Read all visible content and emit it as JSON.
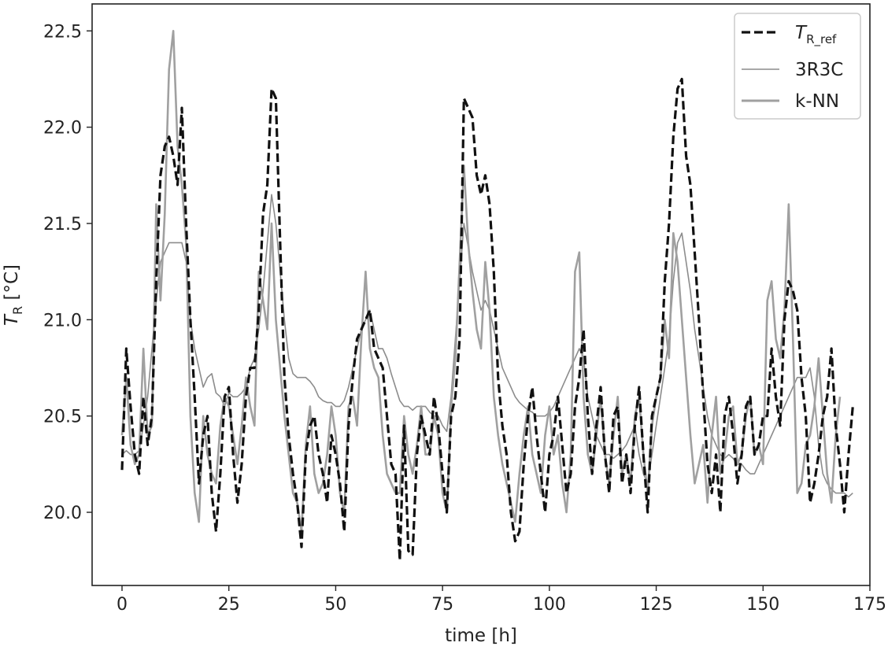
{
  "chart_data": {
    "type": "line",
    "xlabel": "time [h]",
    "ylabel": {
      "main": "T",
      "sub": "R",
      "rest": " [°C]"
    },
    "xlim": [
      -7,
      175
    ],
    "ylim": [
      19.62,
      22.64
    ],
    "xticks": [
      0,
      25,
      50,
      75,
      100,
      125,
      150,
      175
    ],
    "yticks": [
      20.0,
      20.5,
      21.0,
      21.5,
      22.0,
      22.5
    ],
    "xtick_labels": [
      "0",
      "25",
      "50",
      "75",
      "100",
      "125",
      "150",
      "175"
    ],
    "ytick_labels": [
      "20.0",
      "20.5",
      "21.0",
      "21.5",
      "22.0",
      "22.5"
    ],
    "grid": false,
    "legend_position": "top-right",
    "series": [
      {
        "name": "T_R_ref",
        "legend": {
          "main": "T",
          "sub": "R_ref"
        },
        "color": "#111111",
        "style": "dashed",
        "values": [
          20.22,
          20.85,
          20.55,
          20.3,
          20.2,
          20.6,
          20.35,
          20.5,
          21.2,
          21.75,
          21.9,
          21.95,
          21.85,
          21.7,
          22.1,
          21.5,
          21.0,
          20.6,
          20.15,
          20.4,
          20.5,
          20.1,
          19.9,
          20.2,
          20.6,
          20.65,
          20.3,
          20.05,
          20.25,
          20.6,
          20.75,
          20.75,
          21.05,
          21.55,
          21.7,
          22.2,
          22.15,
          21.4,
          20.7,
          20.4,
          20.2,
          20.05,
          19.82,
          20.3,
          20.45,
          20.5,
          20.3,
          20.2,
          20.05,
          20.4,
          20.3,
          20.15,
          19.9,
          20.45,
          20.7,
          20.9,
          20.95,
          21.0,
          21.05,
          20.85,
          20.8,
          20.75,
          20.5,
          20.25,
          20.2,
          19.75,
          20.45,
          19.8,
          19.78,
          20.3,
          20.5,
          20.4,
          20.3,
          20.6,
          20.45,
          20.2,
          20.0,
          20.5,
          20.6,
          20.9,
          22.15,
          22.1,
          22.05,
          21.75,
          21.65,
          21.75,
          21.6,
          21.25,
          20.7,
          20.45,
          20.3,
          20.0,
          19.85,
          19.9,
          20.25,
          20.5,
          20.65,
          20.4,
          20.2,
          20.0,
          20.3,
          20.4,
          20.6,
          20.35,
          20.1,
          20.2,
          20.55,
          20.7,
          20.95,
          20.5,
          20.2,
          20.45,
          20.65,
          20.3,
          20.1,
          20.5,
          20.55,
          20.15,
          20.3,
          20.1,
          20.45,
          20.65,
          20.3,
          20.0,
          20.5,
          20.6,
          20.7,
          21.2,
          21.5,
          21.95,
          22.2,
          22.25,
          21.85,
          21.7,
          21.35,
          21.0,
          20.6,
          20.25,
          20.1,
          20.3,
          20.0,
          20.5,
          20.6,
          20.4,
          20.15,
          20.3,
          20.55,
          20.6,
          20.3,
          20.35,
          20.5,
          20.5,
          20.85,
          20.6,
          20.45,
          21.0,
          21.2,
          21.15,
          21.05,
          20.7,
          20.5,
          20.05,
          20.15,
          20.3,
          20.5,
          20.6,
          20.85,
          20.45,
          20.25,
          20.0,
          20.3,
          20.55
        ],
        "x_start": 0,
        "x_step": 1
      },
      {
        "name": "3R3C",
        "color": "#8c8c8c",
        "style": "thin",
        "values": [
          20.3,
          20.32,
          20.3,
          20.3,
          20.32,
          20.45,
          20.6,
          20.85,
          21.1,
          21.3,
          21.35,
          21.4,
          21.4,
          21.4,
          21.4,
          21.3,
          21.0,
          20.85,
          20.75,
          20.65,
          20.7,
          20.72,
          20.62,
          20.6,
          20.55,
          20.62,
          20.6,
          20.6,
          20.62,
          20.65,
          20.75,
          20.8,
          20.95,
          21.15,
          21.4,
          21.65,
          21.5,
          21.25,
          21.0,
          20.8,
          20.72,
          20.7,
          20.7,
          20.7,
          20.68,
          20.65,
          20.6,
          20.58,
          20.57,
          20.57,
          20.55,
          20.55,
          20.58,
          20.65,
          20.75,
          20.85,
          20.95,
          21.0,
          21.05,
          20.95,
          20.85,
          20.85,
          20.8,
          20.72,
          20.65,
          20.58,
          20.55,
          20.55,
          20.53,
          20.55,
          20.55,
          20.55,
          20.52,
          20.5,
          20.5,
          20.45,
          20.42,
          20.6,
          20.9,
          21.2,
          21.5,
          21.38,
          21.25,
          21.15,
          21.05,
          21.1,
          21.05,
          20.95,
          20.85,
          20.75,
          20.7,
          20.65,
          20.6,
          20.57,
          20.55,
          20.53,
          20.52,
          20.5,
          20.5,
          20.5,
          20.52,
          20.55,
          20.6,
          20.65,
          20.7,
          20.75,
          20.8,
          20.85,
          20.8,
          20.6,
          20.5,
          20.4,
          20.35,
          20.3,
          20.3,
          20.28,
          20.3,
          20.32,
          20.35,
          20.4,
          20.45,
          20.3,
          20.2,
          20.15,
          20.3,
          20.45,
          20.6,
          20.75,
          20.9,
          21.2,
          21.4,
          21.45,
          21.3,
          21.15,
          20.95,
          20.8,
          20.65,
          20.5,
          20.4,
          20.35,
          20.3,
          20.28,
          20.3,
          20.28,
          20.25,
          20.25,
          20.22,
          20.2,
          20.2,
          20.25,
          20.3,
          20.35,
          20.4,
          20.45,
          20.5,
          20.55,
          20.6,
          20.65,
          20.7,
          20.7,
          20.7,
          20.75,
          20.6,
          20.35,
          20.2,
          20.15,
          20.12,
          20.1,
          20.1,
          20.1,
          20.08,
          20.1
        ]
      },
      {
        "name": "k-NN",
        "color": "#a0a0a0",
        "style": "solid",
        "values": [
          20.4,
          20.7,
          20.35,
          20.25,
          20.3,
          20.85,
          20.4,
          20.45,
          21.6,
          21.1,
          21.55,
          22.3,
          22.5,
          21.9,
          21.7,
          21.4,
          20.5,
          20.1,
          19.95,
          20.5,
          20.3,
          20.2,
          20.15,
          20.45,
          20.6,
          20.55,
          20.4,
          20.25,
          20.45,
          20.7,
          20.55,
          20.45,
          21.25,
          21.1,
          20.95,
          21.5,
          21.0,
          20.75,
          20.5,
          20.3,
          20.1,
          20.05,
          19.9,
          20.35,
          20.55,
          20.2,
          20.1,
          20.15,
          20.3,
          20.55,
          20.4,
          20.1,
          20.0,
          20.55,
          20.6,
          20.45,
          20.9,
          21.25,
          20.85,
          20.75,
          20.7,
          20.4,
          20.2,
          20.15,
          20.1,
          20.1,
          20.5,
          20.3,
          20.2,
          20.35,
          20.55,
          20.3,
          20.3,
          20.5,
          20.4,
          20.1,
          20.0,
          20.55,
          20.8,
          21.3,
          21.8,
          21.4,
          21.15,
          20.95,
          20.85,
          21.3,
          21.05,
          20.6,
          20.4,
          20.25,
          20.15,
          20.05,
          19.95,
          20.2,
          20.4,
          20.55,
          20.3,
          20.2,
          20.1,
          20.4,
          20.55,
          20.3,
          20.4,
          20.15,
          20.0,
          20.3,
          21.25,
          21.35,
          20.6,
          20.3,
          20.2,
          20.4,
          20.6,
          20.3,
          20.15,
          20.4,
          20.6,
          20.2,
          20.3,
          20.15,
          20.5,
          20.6,
          20.3,
          20.1,
          20.45,
          20.6,
          20.7,
          21.0,
          20.8,
          21.45,
          21.3,
          21.0,
          20.7,
          20.4,
          20.15,
          20.25,
          20.35,
          20.05,
          20.4,
          20.6,
          20.2,
          20.3,
          20.5,
          20.55,
          20.25,
          20.3,
          20.5,
          20.6,
          20.3,
          20.35,
          20.25,
          21.1,
          21.2,
          20.9,
          20.8,
          21.05,
          21.6,
          20.9,
          20.1,
          20.15,
          20.35,
          20.4,
          20.55,
          20.8,
          20.5,
          20.2,
          20.05,
          20.4,
          20.6
        ]
      }
    ]
  }
}
